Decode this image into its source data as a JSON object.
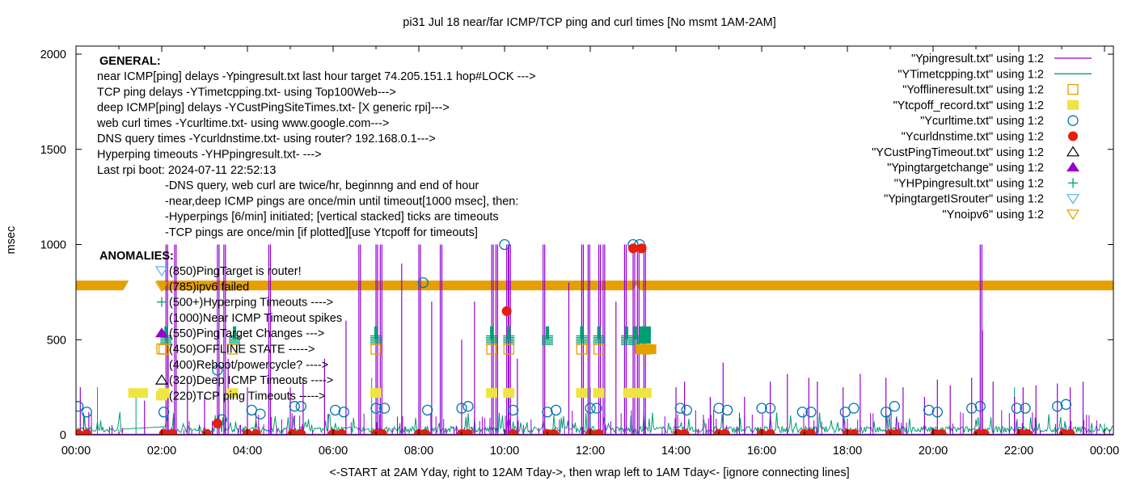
{
  "chart_data": {
    "type": "line",
    "title": "pi31 Jul 18  near/far ICMP/TCP ping and curl times [No msmt 1AM-2AM]",
    "xlabel": "<-START at 2AM Yday, right to 12AM Tday->, then wrap left to 1AM Tday<- [ignore connecting lines]",
    "ylabel": "msec",
    "xlim_hours": [
      0,
      24.2
    ],
    "ylim": [
      0,
      2040
    ],
    "x_ticks": [
      {
        "h": 0,
        "label": "00:00"
      },
      {
        "h": 2,
        "label": "02:00"
      },
      {
        "h": 4,
        "label": "04:00"
      },
      {
        "h": 6,
        "label": "06:00"
      },
      {
        "h": 8,
        "label": "08:00"
      },
      {
        "h": 10,
        "label": "10:00"
      },
      {
        "h": 12,
        "label": "12:00"
      },
      {
        "h": 14,
        "label": "14:00"
      },
      {
        "h": 16,
        "label": "16:00"
      },
      {
        "h": 18,
        "label": "18:00"
      },
      {
        "h": 20,
        "label": "20:00"
      },
      {
        "h": 22,
        "label": "22:00"
      },
      {
        "h": 24,
        "label": "00:00"
      }
    ],
    "y_ticks": [
      {
        "v": 0,
        "label": "0"
      },
      {
        "v": 500,
        "label": "500"
      },
      {
        "v": 1000,
        "label": "1000"
      },
      {
        "v": 1500,
        "label": "1500"
      },
      {
        "v": 2000,
        "label": "2000"
      }
    ],
    "grid": false,
    "legend_position": "top-right",
    "legend": [
      {
        "label": "\"Ypingresult.txt\" using 1:2",
        "style": "line",
        "color": "#9400d3"
      },
      {
        "label": "\"YTimetcpping.txt\" using 1:2",
        "style": "line",
        "color": "#009e73"
      },
      {
        "label": "\"Yofflineresult.txt\" using 1:2",
        "style": "open-square",
        "color": "#e69f00"
      },
      {
        "label": "\"Ytcpoff_record.txt\" using 1:2",
        "style": "filled-square",
        "color": "#f0e442"
      },
      {
        "label": "\"Ycurltime.txt\" using 1:2",
        "style": "open-circle",
        "color": "#0072b2"
      },
      {
        "label": "\"Ycurldnstime.txt\" using 1:2",
        "style": "filled-circle",
        "color": "#e51e10"
      },
      {
        "label": "\"YCustPingTimeout.txt\" using 1:2",
        "style": "open-triangle",
        "color": "#000000"
      },
      {
        "label": "\"Ypingtargetchange\" using 1:2",
        "style": "filled-triangle",
        "color": "#9400d3"
      },
      {
        "label": "\"YHPpingresult.txt\" using 1:2",
        "style": "plus",
        "color": "#009e73"
      },
      {
        "label": "\"YpingtargetISrouter\" using 1:2",
        "style": "open-down-triangle",
        "color": "#56b4e9"
      },
      {
        "label": "\"Ynoipv6\" using 1:2",
        "style": "open-down-triangle",
        "color": "#e69f00"
      }
    ],
    "series": [
      {
        "name": "Ypingresult.txt",
        "kind": "spikes",
        "points": [
          [
            0.1,
            250
          ],
          [
            0.3,
            120
          ],
          [
            1.6,
            180
          ],
          [
            2.1,
            1000
          ],
          [
            2.15,
            450
          ],
          [
            2.3,
            1000
          ],
          [
            2.6,
            300
          ],
          [
            3.0,
            200
          ],
          [
            3.3,
            1000
          ],
          [
            3.45,
            1000
          ],
          [
            3.55,
            400
          ],
          [
            4.0,
            250
          ],
          [
            4.5,
            1000
          ],
          [
            5.0,
            250
          ],
          [
            5.3,
            300
          ],
          [
            5.8,
            400
          ],
          [
            6.3,
            600
          ],
          [
            6.6,
            1000
          ],
          [
            7.0,
            1000
          ],
          [
            7.1,
            1000
          ],
          [
            7.6,
            900
          ],
          [
            8.0,
            1000
          ],
          [
            8.3,
            700
          ],
          [
            8.5,
            1000
          ],
          [
            9.0,
            500
          ],
          [
            9.3,
            700
          ],
          [
            9.7,
            1000
          ],
          [
            9.8,
            1000
          ],
          [
            10.05,
            1000
          ],
          [
            10.1,
            1000
          ],
          [
            10.3,
            400
          ],
          [
            10.9,
            1000
          ],
          [
            11.5,
            800
          ],
          [
            11.8,
            1000
          ],
          [
            11.95,
            1000
          ],
          [
            12.2,
            1000
          ],
          [
            12.3,
            1000
          ],
          [
            12.6,
            700
          ],
          [
            12.8,
            1000
          ],
          [
            13.0,
            1000
          ],
          [
            13.1,
            1000
          ],
          [
            13.25,
            1000
          ],
          [
            14.0,
            250
          ],
          [
            14.2,
            280
          ],
          [
            14.8,
            200
          ],
          [
            15.1,
            380
          ],
          [
            15.6,
            200
          ],
          [
            16.2,
            280
          ],
          [
            16.6,
            320
          ],
          [
            17.1,
            300
          ],
          [
            17.3,
            280
          ],
          [
            17.9,
            250
          ],
          [
            18.3,
            320
          ],
          [
            18.9,
            300
          ],
          [
            19.3,
            250
          ],
          [
            19.8,
            200
          ],
          [
            20.1,
            290
          ],
          [
            20.4,
            260
          ],
          [
            20.9,
            300
          ],
          [
            21.1,
            1000
          ],
          [
            21.15,
            550
          ],
          [
            21.4,
            280
          ],
          [
            21.9,
            200
          ],
          [
            22.1,
            250
          ],
          [
            22.4,
            260
          ],
          [
            22.9,
            270
          ],
          [
            23.2,
            250
          ],
          [
            23.5,
            280
          ]
        ]
      },
      {
        "name": "YTimetcpping.txt",
        "kind": "noise",
        "typical_max": 80,
        "points": [
          [
            0.0,
            40
          ],
          [
            0.5,
            250
          ],
          [
            1.0,
            30
          ],
          [
            1.4,
            220
          ],
          [
            2.0,
            30
          ],
          [
            2.3,
            200
          ],
          [
            3.2,
            40
          ],
          [
            5.8,
            300
          ],
          [
            6.9,
            300
          ],
          [
            8.0,
            40
          ],
          [
            12.0,
            250
          ],
          [
            21.9,
            250
          ],
          [
            24.0,
            60
          ]
        ]
      },
      {
        "name": "Yofflineresult.txt",
        "kind": "markers",
        "value": 450,
        "x": [
          2.05,
          3.65,
          7.0,
          9.7,
          10.1,
          11.8,
          12.2,
          13.3
        ]
      },
      {
        "name": "Ytcpoff_record.txt",
        "kind": "markers",
        "value": 220,
        "x": [
          1.35,
          1.55,
          2.05,
          3.65,
          7.0,
          9.7,
          10.1,
          11.8,
          12.2,
          12.9,
          13.1,
          13.3
        ]
      },
      {
        "name": "Ycurltime.txt",
        "kind": "markers",
        "points": [
          [
            0.05,
            150
          ],
          [
            0.25,
            120
          ],
          [
            2.05,
            120
          ],
          [
            3.3,
            340
          ],
          [
            3.4,
            80
          ],
          [
            4.1,
            130
          ],
          [
            4.3,
            110
          ],
          [
            5.1,
            150
          ],
          [
            5.25,
            150
          ],
          [
            6.05,
            130
          ],
          [
            6.25,
            120
          ],
          [
            7.0,
            140
          ],
          [
            7.2,
            140
          ],
          [
            8.1,
            800
          ],
          [
            8.2,
            130
          ],
          [
            9.0,
            140
          ],
          [
            9.15,
            150
          ],
          [
            10.0,
            1000
          ],
          [
            10.2,
            130
          ],
          [
            11.0,
            120
          ],
          [
            11.2,
            130
          ],
          [
            12.0,
            140
          ],
          [
            12.15,
            140
          ],
          [
            13.0,
            1000
          ],
          [
            13.15,
            1000
          ],
          [
            14.1,
            140
          ],
          [
            14.25,
            130
          ],
          [
            15.0,
            140
          ],
          [
            15.2,
            130
          ],
          [
            16.0,
            140
          ],
          [
            16.2,
            140
          ],
          [
            16.95,
            120
          ],
          [
            17.15,
            120
          ],
          [
            17.95,
            120
          ],
          [
            18.15,
            140
          ],
          [
            18.9,
            120
          ],
          [
            19.1,
            150
          ],
          [
            19.9,
            130
          ],
          [
            20.1,
            120
          ],
          [
            20.9,
            140
          ],
          [
            21.1,
            150
          ],
          [
            21.95,
            140
          ],
          [
            22.15,
            140
          ],
          [
            22.9,
            150
          ],
          [
            23.1,
            160
          ]
        ]
      },
      {
        "name": "Ycurldnstime.txt",
        "kind": "markers",
        "points": [
          [
            0.05,
            5
          ],
          [
            0.25,
            5
          ],
          [
            2.05,
            5
          ],
          [
            2.25,
            5
          ],
          [
            3.05,
            5
          ],
          [
            3.3,
            60
          ],
          [
            4.0,
            5
          ],
          [
            4.2,
            5
          ],
          [
            5.05,
            5
          ],
          [
            5.25,
            5
          ],
          [
            6.0,
            5
          ],
          [
            6.2,
            5
          ],
          [
            7.0,
            5
          ],
          [
            7.15,
            5
          ],
          [
            8.0,
            5
          ],
          [
            8.15,
            5
          ],
          [
            9.0,
            5
          ],
          [
            9.15,
            5
          ],
          [
            10.05,
            650
          ],
          [
            10.2,
            5
          ],
          [
            11.0,
            5
          ],
          [
            11.15,
            5
          ],
          [
            12.0,
            5
          ],
          [
            12.2,
            5
          ],
          [
            13.0,
            980
          ],
          [
            13.2,
            980
          ],
          [
            14.05,
            5
          ],
          [
            14.2,
            5
          ],
          [
            15.0,
            5
          ],
          [
            15.15,
            5
          ],
          [
            16.0,
            5
          ],
          [
            16.2,
            5
          ],
          [
            17.0,
            5
          ],
          [
            17.15,
            5
          ],
          [
            18.0,
            5
          ],
          [
            18.15,
            5
          ],
          [
            19.0,
            5
          ],
          [
            19.15,
            5
          ],
          [
            20.05,
            5
          ],
          [
            20.2,
            5
          ],
          [
            21.05,
            5
          ],
          [
            21.2,
            5
          ],
          [
            22.05,
            5
          ],
          [
            22.2,
            5
          ],
          [
            23.05,
            5
          ],
          [
            23.2,
            5
          ]
        ]
      },
      {
        "name": "YHPpingresult.txt",
        "kind": "stacked-ticks",
        "base": 500,
        "x": [
          2.1,
          3.7,
          7.0,
          9.7,
          10.1,
          11.0,
          11.8,
          12.2,
          12.85,
          13.05,
          13.25
        ]
      },
      {
        "name": "Ynoipv6",
        "kind": "band",
        "value": 785,
        "gaps_hours": [
          [
            1.1,
            2.0
          ],
          [
            13.0,
            13.15
          ]
        ]
      }
    ],
    "annotations": {
      "general_header": "GENERAL:",
      "general_lines": [
        "near ICMP[ping] delays -Ypingresult.txt last hour target 74.205.151.1 hop#LOCK --->",
        "TCP ping delays -YTimetcpping.txt- using Top100Web--->",
        "deep ICMP[ping] delays -YCustPingSiteTimes.txt- [X generic rpi]--->",
        "web curl times -Ycurltime.txt- using www.google.com--->",
        "DNS query times -Ycurldnstime.txt- using router? 192.168.0.1--->",
        "Hyperping timeouts -YHPpingresult.txt- --->",
        "Last rpi boot: 2024-07-11 22:52:13"
      ],
      "notes": [
        "-DNS query, web curl are twice/hr, beginnng and end of hour",
        "-near,deep ICMP pings are once/min until timeout[1000 msec], then:",
        "  -Hyperpings [6/min] initiated; [vertical stacked] ticks are timeouts",
        "-TCP pings are once/min [if plotted][use Ytcpoff for timeouts]"
      ],
      "anomalies_header": "ANOMALIES:",
      "anomalies": [
        {
          "text": "(850)PingTarget is router!",
          "marker": "open-down-triangle",
          "color": "#56b4e9"
        },
        {
          "text": "(785)ipv6 failed",
          "marker": "open-down-triangle",
          "color": "#e69f00"
        },
        {
          "text": "(500+)Hyperping Timeouts ---->",
          "marker": "plus",
          "color": "#009e73"
        },
        {
          "text": "(1000)Near ICMP Timeout spikes",
          "marker": "none",
          "color": "#000000"
        },
        {
          "text": "(550)PingTarget Changes --->",
          "marker": "filled-triangle",
          "color": "#9400d3"
        },
        {
          "text": "(450)OFFLINE STATE ----->",
          "marker": "open-square",
          "color": "#e69f00"
        },
        {
          "text": "(400)Reboot/powercycle? ---->",
          "marker": "none",
          "color": "#000000"
        },
        {
          "text": "(320)Deep ICMP Timeouts ---->",
          "marker": "open-triangle",
          "color": "#000000"
        },
        {
          "text": "(220)TCP ping Timeouts ----->",
          "marker": "filled-square",
          "color": "#f0e442"
        }
      ]
    }
  }
}
